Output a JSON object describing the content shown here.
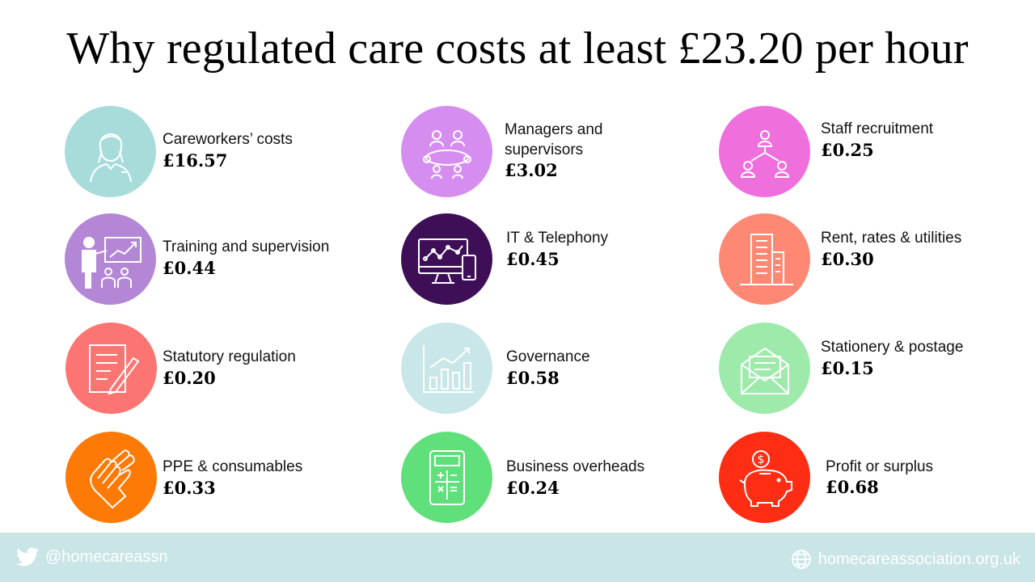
{
  "title": "Why regulated care costs at least £23.20 per hour",
  "items": [
    {
      "label": "Careworkers’ costs",
      "value": "£16.57",
      "icon": "careworker-icon",
      "color": "#a8dcdb"
    },
    {
      "label": "Managers and supervisors",
      "value": "£3.02",
      "icon": "meeting-icon",
      "color": "#d58ef0"
    },
    {
      "label": "Staff recruitment",
      "value": "£0.25",
      "icon": "hierarchy-icon",
      "color": "#ef6fdd"
    },
    {
      "label": "Training and supervision",
      "value": "£0.44",
      "icon": "presentation-icon",
      "color": "#b487d6"
    },
    {
      "label": "IT & Telephony",
      "value": "£0.45",
      "icon": "computer-icon",
      "color": "#3e0f57"
    },
    {
      "label": "Rent, rates & utilities",
      "value": "£0.30",
      "icon": "building-icon",
      "color": "#fd8873"
    },
    {
      "label": "Statutory regulation",
      "value": "£0.20",
      "icon": "document-pen-icon",
      "color": "#fd7572"
    },
    {
      "label": "Governance",
      "value": "£0.58",
      "icon": "bar-chart-icon",
      "color": "#c9e7e8"
    },
    {
      "label": "Stationery & postage",
      "value": "£0.15",
      "icon": "envelope-icon",
      "color": "#9deaab"
    },
    {
      "label": "PPE & consumables",
      "value": "£0.33",
      "icon": "gloves-icon",
      "color": "#fe7a06"
    },
    {
      "label": "Business overheads",
      "value": "£0.24",
      "icon": "calculator-icon",
      "color": "#5fe07a"
    },
    {
      "label": "Profit or surplus",
      "value": "£0.68",
      "icon": "piggy-bank-icon",
      "color": "#fe2d14"
    }
  ],
  "footer": {
    "twitter_handle": "@homecareassn",
    "website": "homecareassociation.org.uk",
    "background": "#c9e5e6"
  }
}
